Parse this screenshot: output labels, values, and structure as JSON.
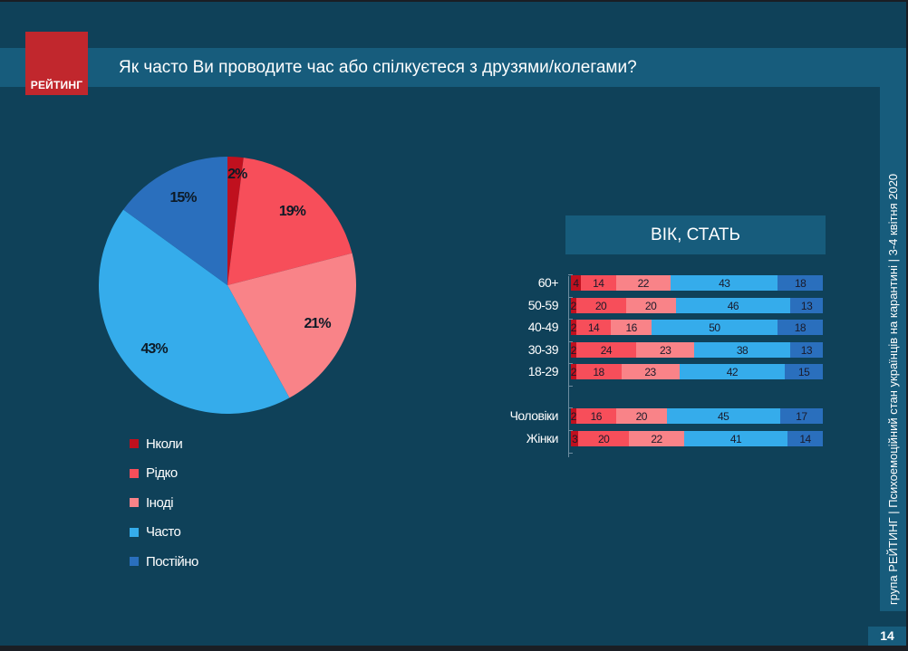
{
  "header": {
    "logo_text": "РЕЙТИНГ",
    "title": "Як часто Ви проводите час або спілкуєтеся з друзями/колегами?"
  },
  "sidebar": {
    "text": "група РЕЙТИНГ  |  Психоемоційний стан українців на карантині  |  3-4 квітня 2020"
  },
  "page_number": "14",
  "colors": {
    "background": "#0f4159",
    "band": "#175c7c",
    "logo": "#c1272d",
    "never": "#c0101e",
    "rarely": "#f74e5a",
    "sometimes": "#f98388",
    "often": "#35aceb",
    "always": "#2a6fbd"
  },
  "legend": [
    {
      "label": "Нколи",
      "color": "#c0101e"
    },
    {
      "label": "Рідко",
      "color": "#f74e5a"
    },
    {
      "label": "Іноді",
      "color": "#f98388"
    },
    {
      "label": "Часто",
      "color": "#35aceb"
    },
    {
      "label": "Постійно",
      "color": "#2a6fbd"
    }
  ],
  "bar_section": {
    "header": "ВІК, СТАТЬ"
  },
  "chart_data": [
    {
      "type": "pie",
      "title": "Як часто Ви проводите час або спілкуєтеся з друзями/колегами?",
      "categories": [
        "Нколи",
        "Рідко",
        "Іноді",
        "Часто",
        "Постійно"
      ],
      "values": [
        2,
        19,
        21,
        43,
        15
      ],
      "labels": [
        "2%",
        "19%",
        "21%",
        "43%",
        "15%"
      ],
      "colors": [
        "#c0101e",
        "#f74e5a",
        "#f98388",
        "#35aceb",
        "#2a6fbd"
      ],
      "legend_position": "bottom-left"
    },
    {
      "type": "bar",
      "orientation": "horizontal-stacked-100",
      "title": "ВІК, СТАТЬ",
      "categories": [
        "60+",
        "50-59",
        "40-49",
        "30-39",
        "18-29",
        "Чоловіки",
        "Жінки"
      ],
      "series": [
        {
          "name": "Нколи",
          "color": "#c0101e",
          "values": [
            4,
            2,
            2,
            2,
            2,
            2,
            3
          ]
        },
        {
          "name": "Рідко",
          "color": "#f74e5a",
          "values": [
            14,
            20,
            14,
            24,
            18,
            16,
            20
          ]
        },
        {
          "name": "Іноді",
          "color": "#f98388",
          "values": [
            22,
            20,
            16,
            23,
            23,
            20,
            22
          ]
        },
        {
          "name": "Часто",
          "color": "#35aceb",
          "values": [
            43,
            46,
            50,
            38,
            42,
            45,
            41
          ]
        },
        {
          "name": "Постійно",
          "color": "#2a6fbd",
          "values": [
            18,
            13,
            18,
            13,
            15,
            17,
            14
          ]
        }
      ],
      "xlabel": "",
      "ylabel": ""
    }
  ]
}
